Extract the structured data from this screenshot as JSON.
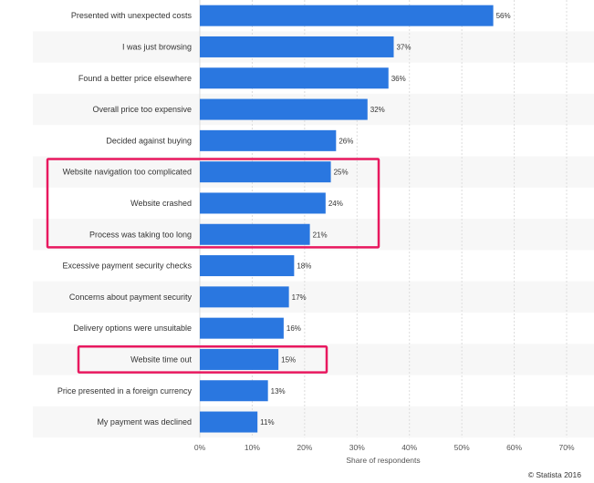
{
  "chart_data": {
    "type": "bar",
    "orientation": "horizontal",
    "categories": [
      "Presented with unexpected costs",
      "I was just browsing",
      "Found a better price elsewhere",
      "Overall price too expensive",
      "Decided against buying",
      "Website navigation too complicated",
      "Website crashed",
      "Process was taking too long",
      "Excessive payment security checks",
      "Concerns about payment security",
      "Delivery options were unsuitable",
      "Website time out",
      "Price presented in a foreign currency",
      "My payment was declined"
    ],
    "values": [
      56,
      37,
      36,
      32,
      26,
      25,
      24,
      21,
      18,
      17,
      16,
      15,
      13,
      11
    ],
    "value_labels": [
      "56%",
      "37%",
      "36%",
      "32%",
      "26%",
      "25%",
      "24%",
      "21%",
      "18%",
      "17%",
      "16%",
      "15%",
      "13%",
      "11%"
    ],
    "xlim": [
      0,
      70
    ],
    "xticks": [
      "0%",
      "10%",
      "20%",
      "30%",
      "40%",
      "50%",
      "60%",
      "70%"
    ],
    "xlabel": "Share of respondents",
    "ylabel": "",
    "title": "",
    "grid": true,
    "bar_color": "#2a77e0",
    "highlights": [
      {
        "categories": [
          "Website navigation too complicated",
          "Website crashed",
          "Process was taking too long"
        ],
        "color": "#e8185f"
      },
      {
        "categories": [
          "Website time out"
        ],
        "color": "#e8185f"
      }
    ]
  },
  "footer": {
    "credit": "© Statista 2016"
  }
}
